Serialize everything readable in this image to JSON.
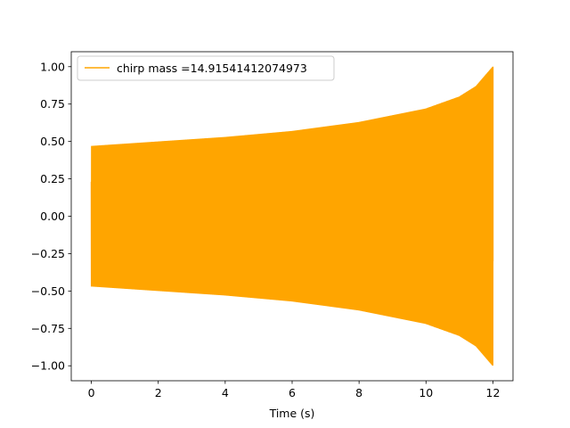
{
  "chart_data": {
    "type": "line",
    "title": "",
    "xlabel": "Time (s)",
    "ylabel": "",
    "xlim": [
      -0.6,
      12.6
    ],
    "ylim": [
      -1.1,
      1.1
    ],
    "x_ticks": [
      0,
      2,
      4,
      6,
      8,
      10,
      12
    ],
    "x_tick_labels": [
      "0",
      "2",
      "4",
      "6",
      "8",
      "10",
      "12"
    ],
    "y_ticks": [
      1.0,
      0.75,
      0.5,
      0.25,
      0.0,
      -0.25,
      -0.5,
      -0.75,
      -1.0
    ],
    "y_tick_labels": [
      "1.00",
      "0.75",
      "0.50",
      "0.25",
      "0.00",
      "−0.25",
      "−0.50",
      "−0.75",
      "−1.00"
    ],
    "grid": false,
    "legend_position": "top-left",
    "series": [
      {
        "name": "chirp mass =14.91541412074973",
        "color": "#ffa500",
        "x_range": [
          0,
          12
        ],
        "envelope": [
          {
            "x": 0,
            "amplitude": 0.47
          },
          {
            "x": 2,
            "amplitude": 0.5
          },
          {
            "x": 4,
            "amplitude": 0.53
          },
          {
            "x": 6,
            "amplitude": 0.57
          },
          {
            "x": 8,
            "amplitude": 0.63
          },
          {
            "x": 10,
            "amplitude": 0.72
          },
          {
            "x": 11,
            "amplitude": 0.8
          },
          {
            "x": 11.5,
            "amplitude": 0.87
          },
          {
            "x": 12,
            "amplitude": 1.0
          }
        ]
      }
    ]
  }
}
